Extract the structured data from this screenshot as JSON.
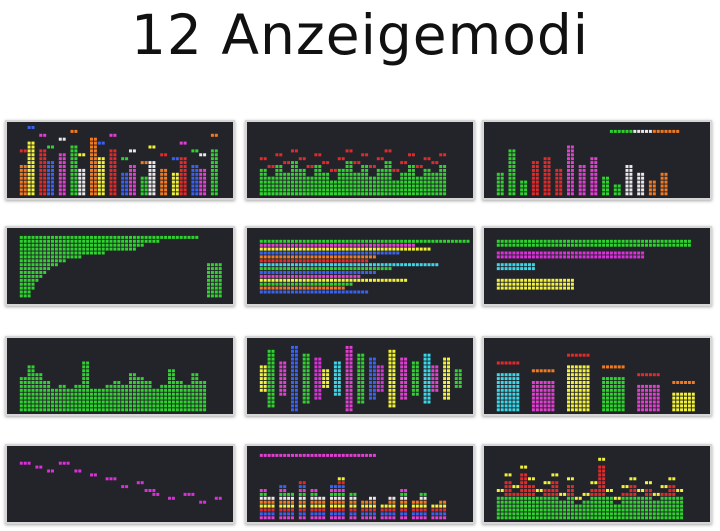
{
  "title": "12 Anzeigemodi",
  "palette": {
    "panel_bg": "#23232a",
    "green": "#2fd22f",
    "red": "#e12a2a",
    "orange": "#f07a22",
    "yellow": "#f2f23a",
    "blue": "#3a62f0",
    "pink": "#e040d0",
    "magenta": "#d930d9",
    "cyan": "#3ad8e8",
    "white": "#e8e8e8"
  },
  "modes": [
    {
      "id": 1,
      "style": "rainbow-bars-with-peaks"
    },
    {
      "id": 2,
      "style": "green-bars-red-peaks"
    },
    {
      "id": 3,
      "style": "color-bars-with-header"
    },
    {
      "id": 4,
      "style": "horizontal-green-bars"
    },
    {
      "id": 5,
      "style": "horizontal-rainbow-rows"
    },
    {
      "id": 6,
      "style": "horizontal-color-levels"
    },
    {
      "id": 7,
      "style": "green-vertical-bars"
    },
    {
      "id": 8,
      "style": "mirrored-waveform"
    },
    {
      "id": 9,
      "style": "wide-color-blocks"
    },
    {
      "id": 10,
      "style": "magenta-line-dots"
    },
    {
      "id": 11,
      "style": "rainbow-stacked-bars"
    },
    {
      "id": 12,
      "style": "green-red-spectrum"
    }
  ]
}
